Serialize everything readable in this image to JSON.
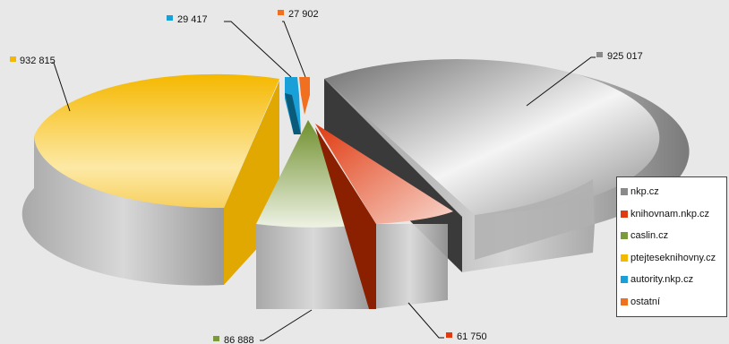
{
  "chart_data": {
    "type": "pie",
    "style": "3d-exploded",
    "series": [
      {
        "name": "nkp.cz",
        "value": 925017,
        "label": "925 017",
        "color": "#8a8a8a"
      },
      {
        "name": "knihovnam.nkp.cz",
        "value": 61750,
        "label": "61 750",
        "color": "#e03a10"
      },
      {
        "name": "caslin.cz",
        "value": 86888,
        "label": "86 888",
        "color": "#7a9a3c"
      },
      {
        "name": "ptejteseknihovny.cz",
        "value": 932815,
        "label": "932 815",
        "color": "#f5b800"
      },
      {
        "name": "autority.nkp.cz",
        "value": 29417,
        "label": "29 417",
        "color": "#1aa0d8"
      },
      {
        "name": "ostatní",
        "value": 27902,
        "label": "27 902",
        "color": "#f07020"
      }
    ],
    "legend_position": "right"
  }
}
